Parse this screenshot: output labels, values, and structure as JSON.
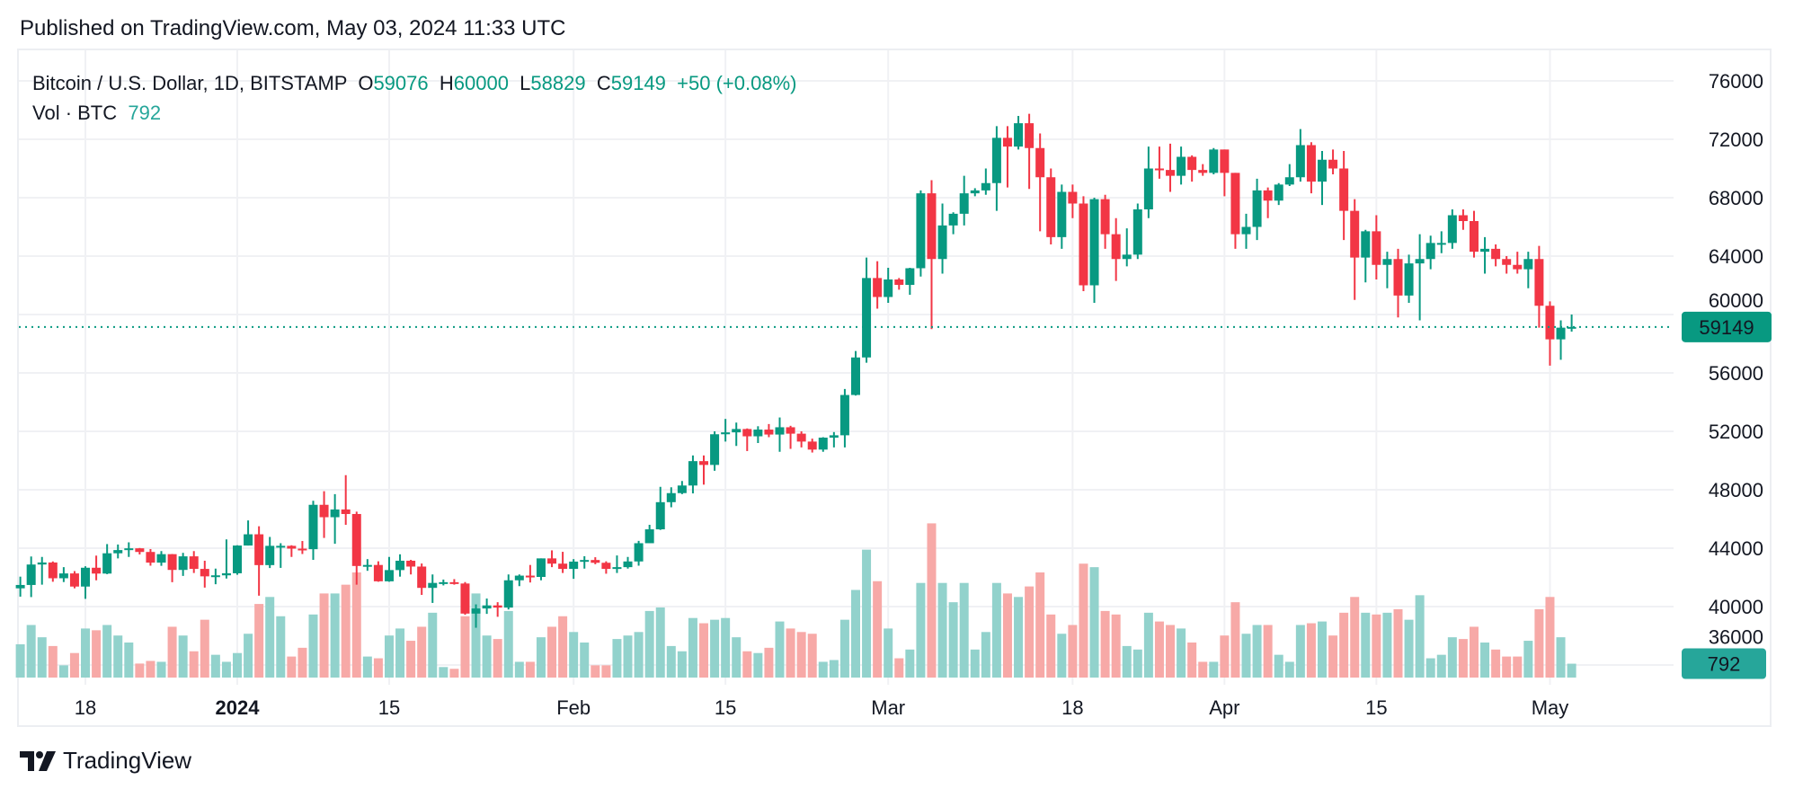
{
  "published": "Published on TradingView.com, May 03, 2024 11:33 UTC",
  "legend": {
    "symbol": "Bitcoin / U.S. Dollar, 1D, BITSTAMP",
    "o_label": "O",
    "o": "59076",
    "h_label": "H",
    "h": "60000",
    "l_label": "L",
    "l": "58829",
    "c_label": "C",
    "c": "59149",
    "change": "+50 (+0.08%)",
    "vol_label": "Vol · BTC",
    "vol": "792"
  },
  "logo": {
    "text": "TradingView",
    "icon": "tradingview-logo-icon"
  },
  "colors": {
    "up": "#089981",
    "down": "#F23645",
    "up_volume": "#92D2CC",
    "down_volume": "#F7A9A7",
    "last_price": "#089981",
    "volume_label": "#26A69A"
  },
  "chart_data": {
    "type": "candlestick",
    "title": "Bitcoin / U.S. Dollar, 1D, BITSTAMP",
    "ylim": [
      36000,
      76000
    ],
    "grid": true,
    "price_ticks": [
      "76000",
      "72000",
      "68000",
      "64000",
      "60000",
      "56000",
      "52000",
      "48000",
      "44000",
      "40000",
      "36000"
    ],
    "last_price": {
      "value": 59149,
      "label": "59149"
    },
    "last_volume": {
      "value": 792,
      "label": "792"
    },
    "time_ticks": [
      {
        "label": "18",
        "date": "2023-12-18",
        "bold": false
      },
      {
        "label": "2024",
        "date": "2024-01-01",
        "bold": true
      },
      {
        "label": "15",
        "date": "2024-01-15",
        "bold": false
      },
      {
        "label": "Feb",
        "date": "2024-02-01",
        "bold": false
      },
      {
        "label": "15",
        "date": "2024-02-15",
        "bold": false
      },
      {
        "label": "Mar",
        "date": "2024-03-01",
        "bold": false
      },
      {
        "label": "18",
        "date": "2024-03-18",
        "bold": false
      },
      {
        "label": "Apr",
        "date": "2024-04-01",
        "bold": false
      },
      {
        "label": "15",
        "date": "2024-04-15",
        "bold": false
      },
      {
        "label": "May",
        "date": "2024-05-01",
        "bold": false
      }
    ],
    "columns": [
      "date",
      "open",
      "high",
      "low",
      "close",
      "volume"
    ],
    "candles": [
      [
        "2023-12-12",
        41250,
        42050,
        40680,
        41480,
        1900
      ],
      [
        "2023-12-13",
        41480,
        43430,
        40650,
        42880,
        3000
      ],
      [
        "2023-12-14",
        42880,
        43400,
        41500,
        43020,
        2300
      ],
      [
        "2023-12-15",
        43020,
        43090,
        41700,
        41940,
        1800
      ],
      [
        "2023-12-16",
        41940,
        42700,
        41680,
        42270,
        700
      ],
      [
        "2023-12-17",
        42270,
        42430,
        41250,
        41370,
        1400
      ],
      [
        "2023-12-18",
        41370,
        42760,
        40530,
        42660,
        2800
      ],
      [
        "2023-12-19",
        42660,
        43490,
        41800,
        42260,
        2700
      ],
      [
        "2023-12-20",
        42260,
        44280,
        42220,
        43650,
        3000
      ],
      [
        "2023-12-21",
        43650,
        44250,
        43300,
        43870,
        2400
      ],
      [
        "2023-12-22",
        43870,
        44400,
        43400,
        43990,
        2000
      ],
      [
        "2023-12-23",
        43990,
        44010,
        43570,
        43740,
        800
      ],
      [
        "2023-12-24",
        43740,
        43940,
        42800,
        43010,
        950
      ],
      [
        "2023-12-25",
        43010,
        43800,
        42790,
        43590,
        900
      ],
      [
        "2023-12-26",
        43590,
        43600,
        41670,
        42510,
        2900
      ],
      [
        "2023-12-27",
        42510,
        43680,
        42100,
        43440,
        2400
      ],
      [
        "2023-12-28",
        43440,
        43800,
        42300,
        42580,
        1500
      ],
      [
        "2023-12-29",
        42580,
        43140,
        41300,
        42070,
        3300
      ],
      [
        "2023-12-30",
        42070,
        42600,
        41530,
        42140,
        1300
      ],
      [
        "2023-12-31",
        42140,
        44600,
        41920,
        42280,
        900
      ],
      [
        "2024-01-01",
        42280,
        44200,
        42180,
        44180,
        1400
      ],
      [
        "2024-01-02",
        44180,
        45900,
        44180,
        44950,
        2500
      ],
      [
        "2024-01-03",
        44950,
        45500,
        40750,
        42840,
        4200
      ],
      [
        "2024-01-04",
        42840,
        44770,
        42640,
        44160,
        4600
      ],
      [
        "2024-01-05",
        44160,
        44340,
        42650,
        44160,
        3500
      ],
      [
        "2024-01-06",
        44160,
        44200,
        43400,
        43970,
        1200
      ],
      [
        "2024-01-07",
        43970,
        44490,
        43600,
        43930,
        1700
      ],
      [
        "2024-01-08",
        43930,
        47250,
        43200,
        46970,
        3600
      ],
      [
        "2024-01-09",
        46970,
        47900,
        44700,
        46120,
        4800
      ],
      [
        "2024-01-10",
        46120,
        47700,
        44300,
        46650,
        4800
      ],
      [
        "2024-01-11",
        46650,
        49000,
        45600,
        46340,
        5300
      ],
      [
        "2024-01-12",
        46340,
        46500,
        41500,
        42780,
        6000
      ],
      [
        "2024-01-13",
        42780,
        43250,
        42450,
        42850,
        1200
      ],
      [
        "2024-01-14",
        42850,
        43100,
        41700,
        41730,
        1100
      ],
      [
        "2024-01-15",
        41730,
        43400,
        41700,
        42500,
        2400
      ],
      [
        "2024-01-16",
        42500,
        43580,
        42050,
        43140,
        2800
      ],
      [
        "2024-01-17",
        43140,
        43200,
        42200,
        42740,
        2100
      ],
      [
        "2024-01-18",
        42740,
        42950,
        40800,
        41280,
        2900
      ],
      [
        "2024-01-19",
        41280,
        42200,
        40250,
        41620,
        3700
      ],
      [
        "2024-01-20",
        41620,
        41850,
        41450,
        41670,
        600
      ],
      [
        "2024-01-21",
        41670,
        41880,
        41500,
        41580,
        500
      ],
      [
        "2024-01-22",
        41580,
        41680,
        39440,
        39520,
        3500
      ],
      [
        "2024-01-23",
        39520,
        40150,
        38550,
        39870,
        4800
      ],
      [
        "2024-01-24",
        39870,
        40550,
        39500,
        40080,
        2400
      ],
      [
        "2024-01-25",
        40080,
        40300,
        39300,
        39930,
        2200
      ],
      [
        "2024-01-26",
        39930,
        42200,
        39800,
        41800,
        3800
      ],
      [
        "2024-01-27",
        41800,
        42200,
        41400,
        42120,
        900
      ],
      [
        "2024-01-28",
        42120,
        42850,
        41650,
        42030,
        900
      ],
      [
        "2024-01-29",
        42030,
        43300,
        41800,
        43300,
        2300
      ],
      [
        "2024-01-30",
        43300,
        43850,
        42700,
        42940,
        2900
      ],
      [
        "2024-01-31",
        42940,
        43750,
        42300,
        42580,
        3500
      ],
      [
        "2024-02-01",
        42580,
        43250,
        41900,
        43080,
        2600
      ],
      [
        "2024-02-02",
        43080,
        43450,
        42600,
        43190,
        2000
      ],
      [
        "2024-02-03",
        43190,
        43380,
        42900,
        43000,
        700
      ],
      [
        "2024-02-04",
        43000,
        43100,
        42250,
        42580,
        700
      ],
      [
        "2024-02-05",
        42580,
        43500,
        42300,
        42700,
        2200
      ],
      [
        "2024-02-06",
        42700,
        43400,
        42600,
        43090,
        2400
      ],
      [
        "2024-02-07",
        43090,
        44500,
        42800,
        44340,
        2600
      ],
      [
        "2024-02-08",
        44340,
        45600,
        44340,
        45290,
        3800
      ],
      [
        "2024-02-09",
        45290,
        48200,
        45250,
        47150,
        4000
      ],
      [
        "2024-02-10",
        47150,
        48170,
        46800,
        47770,
        1800
      ],
      [
        "2024-02-11",
        47770,
        48600,
        47700,
        48290,
        1500
      ],
      [
        "2024-02-12",
        48290,
        50350,
        47750,
        49960,
        3400
      ],
      [
        "2024-02-13",
        49960,
        50350,
        48350,
        49700,
        3100
      ],
      [
        "2024-02-14",
        49700,
        52000,
        49300,
        51800,
        3300
      ],
      [
        "2024-02-15",
        51800,
        52850,
        51300,
        51930,
        3400
      ],
      [
        "2024-02-16",
        51930,
        52600,
        51000,
        52160,
        2300
      ],
      [
        "2024-02-17",
        52160,
        52200,
        50650,
        51660,
        1500
      ],
      [
        "2024-02-18",
        51660,
        52350,
        51200,
        52120,
        1400
      ],
      [
        "2024-02-19",
        52120,
        52500,
        51600,
        51780,
        1700
      ],
      [
        "2024-02-20",
        51780,
        52950,
        50600,
        52280,
        3200
      ],
      [
        "2024-02-21",
        52280,
        52380,
        50800,
        51840,
        2800
      ],
      [
        "2024-02-22",
        51840,
        52000,
        50900,
        51300,
        2600
      ],
      [
        "2024-02-23",
        51300,
        51500,
        50550,
        50750,
        2500
      ],
      [
        "2024-02-24",
        50750,
        51600,
        50600,
        51570,
        900
      ],
      [
        "2024-02-25",
        51570,
        51950,
        50900,
        51730,
        1000
      ],
      [
        "2024-02-26",
        51730,
        54900,
        50900,
        54490,
        3300
      ],
      [
        "2024-02-27",
        54490,
        57500,
        54450,
        57060,
        5000
      ],
      [
        "2024-02-28",
        57060,
        63900,
        56700,
        62500,
        7300
      ],
      [
        "2024-02-29",
        62500,
        63650,
        60400,
        61200,
        5500
      ],
      [
        "2024-03-01",
        61200,
        63200,
        60800,
        62400,
        2800
      ],
      [
        "2024-03-02",
        62400,
        62500,
        61700,
        62030,
        1100
      ],
      [
        "2024-03-03",
        62030,
        63200,
        61350,
        63170,
        1600
      ],
      [
        "2024-03-04",
        63170,
        68500,
        62600,
        68300,
        5400
      ],
      [
        "2024-03-05",
        68300,
        69200,
        59000,
        63800,
        8800
      ],
      [
        "2024-03-06",
        63800,
        67600,
        62800,
        66100,
        5400
      ],
      [
        "2024-03-07",
        66100,
        67000,
        65500,
        66900,
        4300
      ],
      [
        "2024-03-08",
        66900,
        69500,
        66100,
        68300,
        5400
      ],
      [
        "2024-03-09",
        68300,
        68650,
        68100,
        68500,
        1600
      ],
      [
        "2024-03-10",
        68500,
        70000,
        68200,
        69000,
        2600
      ],
      [
        "2024-03-11",
        69000,
        72900,
        67100,
        72100,
        5400
      ],
      [
        "2024-03-12",
        72100,
        72900,
        68700,
        71500,
        4800
      ],
      [
        "2024-03-13",
        71500,
        73600,
        71300,
        73100,
        4600
      ],
      [
        "2024-03-14",
        73100,
        73750,
        68600,
        71400,
        5200
      ],
      [
        "2024-03-15",
        71400,
        72400,
        65700,
        69400,
        6000
      ],
      [
        "2024-03-16",
        69400,
        70000,
        64800,
        65300,
        3600
      ],
      [
        "2024-03-17",
        65300,
        68900,
        64500,
        68400,
        2500
      ],
      [
        "2024-03-18",
        68400,
        68900,
        66600,
        67600,
        3000
      ],
      [
        "2024-03-19",
        67600,
        68100,
        61600,
        62000,
        6500
      ],
      [
        "2024-03-20",
        62000,
        68000,
        60800,
        67900,
        6300
      ],
      [
        "2024-03-21",
        67900,
        68200,
        64500,
        65500,
        3800
      ],
      [
        "2024-03-22",
        65500,
        66600,
        62300,
        63800,
        3600
      ],
      [
        "2024-03-23",
        63800,
        65900,
        63300,
        64100,
        1800
      ],
      [
        "2024-03-24",
        64100,
        67600,
        63800,
        67200,
        1600
      ],
      [
        "2024-03-25",
        67200,
        71500,
        66600,
        70000,
        3700
      ],
      [
        "2024-03-26",
        70000,
        71500,
        69300,
        69900,
        3200
      ],
      [
        "2024-03-27",
        69900,
        71700,
        68400,
        69500,
        3000
      ],
      [
        "2024-03-28",
        69500,
        71500,
        68900,
        70800,
        2800
      ],
      [
        "2024-03-29",
        70800,
        70900,
        69100,
        69900,
        2000
      ],
      [
        "2024-03-30",
        69900,
        70300,
        69500,
        69700,
        900
      ],
      [
        "2024-03-31",
        69700,
        71400,
        69600,
        71300,
        900
      ],
      [
        "2024-04-01",
        71300,
        71300,
        68100,
        69700,
        2400
      ],
      [
        "2024-04-02",
        69700,
        69700,
        64500,
        65500,
        4300
      ],
      [
        "2024-04-03",
        65500,
        66900,
        64500,
        66000,
        2500
      ],
      [
        "2024-04-04",
        66000,
        69300,
        65100,
        68500,
        3000
      ],
      [
        "2024-04-05",
        68500,
        68700,
        66600,
        67800,
        3000
      ],
      [
        "2024-04-06",
        67800,
        69000,
        67500,
        68900,
        1300
      ],
      [
        "2024-04-07",
        68900,
        70300,
        68800,
        69400,
        900
      ],
      [
        "2024-04-08",
        69400,
        72700,
        69100,
        71600,
        3000
      ],
      [
        "2024-04-09",
        71600,
        71800,
        68300,
        69100,
        3100
      ],
      [
        "2024-04-10",
        69100,
        71200,
        67500,
        70600,
        3200
      ],
      [
        "2024-04-11",
        70600,
        71300,
        69600,
        70000,
        2400
      ],
      [
        "2024-04-12",
        70000,
        71200,
        65100,
        67100,
        3700
      ],
      [
        "2024-04-13",
        67100,
        67900,
        61000,
        63900,
        4600
      ],
      [
        "2024-04-14",
        63900,
        65800,
        62200,
        65700,
        3700
      ],
      [
        "2024-04-15",
        65700,
        66800,
        62400,
        63400,
        3600
      ],
      [
        "2024-04-16",
        63400,
        64300,
        61800,
        63800,
        3700
      ],
      [
        "2024-04-17",
        63800,
        64500,
        59800,
        61300,
        3900
      ],
      [
        "2024-04-18",
        61300,
        64100,
        60800,
        63500,
        3300
      ],
      [
        "2024-04-19",
        63500,
        65500,
        59600,
        63800,
        4700
      ],
      [
        "2024-04-20",
        63800,
        65400,
        63100,
        64900,
        1100
      ],
      [
        "2024-04-21",
        64900,
        65700,
        64200,
        64900,
        1300
      ],
      [
        "2024-04-22",
        64900,
        67200,
        64500,
        66800,
        2300
      ],
      [
        "2024-04-23",
        66800,
        67200,
        65800,
        66400,
        2200
      ],
      [
        "2024-04-24",
        66400,
        67100,
        63900,
        64300,
        2900
      ],
      [
        "2024-04-25",
        64300,
        65300,
        62800,
        64500,
        2000
      ],
      [
        "2024-04-26",
        64500,
        64800,
        63300,
        63800,
        1600
      ],
      [
        "2024-04-27",
        63800,
        64000,
        62800,
        63400,
        1200
      ],
      [
        "2024-04-28",
        63400,
        64300,
        62800,
        63100,
        1200
      ],
      [
        "2024-04-29",
        63100,
        64300,
        61800,
        63800,
        2100
      ],
      [
        "2024-04-30",
        63800,
        64700,
        59100,
        60600,
        3900
      ],
      [
        "2024-05-01",
        60600,
        60900,
        56500,
        58300,
        4600
      ],
      [
        "2024-05-02",
        58300,
        59600,
        56900,
        59100,
        2300
      ],
      [
        "2024-05-03",
        59076,
        60000,
        58829,
        59149,
        792
      ]
    ]
  }
}
